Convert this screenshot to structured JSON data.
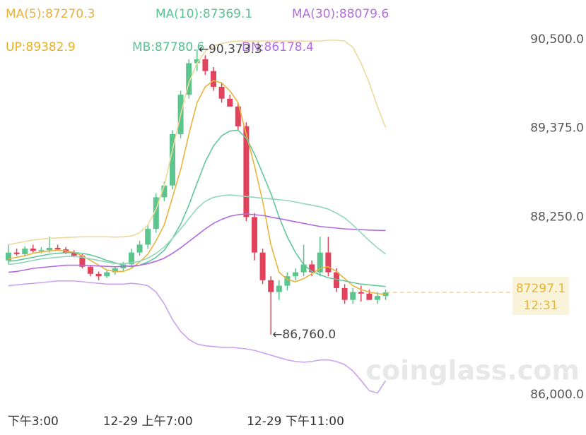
{
  "chart_data": {
    "type": "candlestick",
    "categories": [
      null,
      null,
      null,
      "下午3:00",
      null,
      null,
      null,
      null,
      null,
      null,
      null,
      null,
      null,
      null,
      null,
      null,
      null,
      "12-29 上午7:00",
      null,
      null,
      null,
      null,
      null,
      null,
      null,
      null,
      null,
      null,
      null,
      null,
      null,
      null,
      null,
      null,
      null,
      "12-29 下午11:00",
      null,
      null,
      null,
      null,
      null,
      null,
      null,
      null,
      null,
      null,
      null
    ],
    "open": [
      87700,
      87800,
      87780,
      87850,
      87820,
      87830,
      87860,
      87840,
      87800,
      87760,
      87620,
      87530,
      87500,
      87550,
      87600,
      87650,
      87800,
      87900,
      88100,
      88500,
      88650,
      89300,
      89800,
      90200,
      90250,
      90100,
      89900,
      89750,
      89650,
      89400,
      88250,
      87800,
      87450,
      87300,
      87380,
      87500,
      87550,
      87650,
      87550,
      87800,
      87550,
      87350,
      87200,
      87300,
      87280,
      87200,
      87250
    ],
    "high": [
      87900,
      87850,
      87880,
      87900,
      87870,
      88000,
      87900,
      87870,
      87830,
      87780,
      87640,
      87560,
      87580,
      87620,
      87680,
      87850,
      87950,
      88150,
      88550,
      88700,
      89350,
      89850,
      90250,
      90373.3,
      90300,
      90150,
      89950,
      89800,
      89700,
      89450,
      88300,
      87850,
      87500,
      87450,
      87550,
      87600,
      87900,
      87700,
      88000,
      88000,
      87600,
      87400,
      87350,
      87380,
      87330,
      87300,
      87330
    ],
    "low": [
      87650,
      87760,
      87750,
      87800,
      87790,
      87800,
      87820,
      87780,
      87740,
      87600,
      87500,
      87450,
      87480,
      87520,
      87560,
      87620,
      87760,
      87850,
      88050,
      88450,
      88600,
      89250,
      89750,
      90100,
      90050,
      89850,
      89700,
      89650,
      89350,
      88200,
      87700,
      87400,
      86760,
      87200,
      87320,
      87450,
      87500,
      87500,
      87500,
      87500,
      87300,
      87150,
      87150,
      87180,
      87200,
      87150,
      87200
    ],
    "close": [
      87800,
      87780,
      87850,
      87820,
      87830,
      87860,
      87840,
      87800,
      87760,
      87620,
      87530,
      87500,
      87550,
      87600,
      87650,
      87800,
      87900,
      88100,
      88500,
      88650,
      89300,
      89800,
      90200,
      90250,
      90100,
      89900,
      89750,
      89650,
      89400,
      88250,
      87800,
      87450,
      87300,
      87380,
      87500,
      87550,
      87650,
      87550,
      87800,
      87550,
      87350,
      87200,
      87300,
      87280,
      87200,
      87250,
      87297.1
    ],
    "up_color": "#5cc48d",
    "down_color": "#e0435b",
    "series": [
      {
        "name": "MA(5):87270.3",
        "color": "#e8b43c",
        "legend_color": "#e9b13a",
        "values": [
          87720,
          87740,
          87760,
          87790,
          87810,
          87820,
          87830,
          87820,
          87800,
          87760,
          87700,
          87640,
          87580,
          87560,
          87560,
          87600,
          87680,
          87780,
          87950,
          88150,
          88500,
          88850,
          89300,
          89700,
          89900,
          89980,
          89950,
          89850,
          89700,
          89300,
          88900,
          88450,
          87900,
          87550,
          87460,
          87430,
          87470,
          87530,
          87600,
          87620,
          87560,
          87470,
          87380,
          87330,
          87300,
          87280,
          87270.3
        ]
      },
      {
        "name": "MA(10):87369.1",
        "color": "#62c69a",
        "legend_color": "#5bc292",
        "values": [
          87690,
          87700,
          87720,
          87740,
          87760,
          87780,
          87790,
          87800,
          87800,
          87790,
          87770,
          87740,
          87700,
          87670,
          87640,
          87620,
          87640,
          87680,
          87740,
          87830,
          87980,
          88160,
          88400,
          88680,
          88950,
          89150,
          89280,
          89340,
          89350,
          89250,
          89050,
          88800,
          88550,
          88250,
          88000,
          87800,
          87650,
          87560,
          87520,
          87480,
          87460,
          87440,
          87420,
          87400,
          87390,
          87380,
          87369.1
        ]
      },
      {
        "name": "MA(30):88079.6",
        "color": "#b26ae0",
        "legend_color": "#b46ce3",
        "values": [
          87550,
          87560,
          87580,
          87600,
          87610,
          87620,
          87630,
          87640,
          87640,
          87640,
          87635,
          87630,
          87625,
          87620,
          87625,
          87630,
          87640,
          87660,
          87690,
          87730,
          87790,
          87860,
          87940,
          88020,
          88100,
          88170,
          88220,
          88260,
          88280,
          88290,
          88280,
          88270,
          88250,
          88230,
          88210,
          88190,
          88170,
          88150,
          88130,
          88120,
          88110,
          88100,
          88095,
          88090,
          88085,
          88082,
          88079.6
        ]
      },
      {
        "name": "UP:89382.9",
        "color": "#efd99a",
        "legend_color": "#e8b028",
        "values": [
          87900,
          87920,
          87940,
          87960,
          87970,
          87980,
          87985,
          87990,
          87995,
          88000,
          88000,
          88000,
          88000,
          87995,
          88000,
          88010,
          88050,
          88150,
          88350,
          88650,
          89100,
          89550,
          89950,
          90200,
          90350,
          90420,
          90450,
          90470,
          90480,
          90480,
          90480,
          90480,
          90480,
          90480,
          90480,
          90480,
          90480,
          90480,
          90480,
          90490,
          90490,
          90480,
          90400,
          90200,
          89950,
          89650,
          89382.9
        ]
      },
      {
        "name": "MB:87780.6",
        "color": "#92d7b8",
        "legend_color": "#5bc292",
        "values": [
          87650,
          87660,
          87680,
          87700,
          87720,
          87730,
          87740,
          87750,
          87750,
          87740,
          87720,
          87700,
          87680,
          87660,
          87660,
          87670,
          87690,
          87730,
          87790,
          87870,
          87980,
          88100,
          88230,
          88360,
          88450,
          88500,
          88520,
          88530,
          88520,
          88510,
          88500,
          88490,
          88480,
          88470,
          88460,
          88440,
          88420,
          88400,
          88380,
          88350,
          88300,
          88240,
          88150,
          88050,
          87950,
          87860,
          87780.6
        ]
      },
      {
        "name": "DN:86178.4",
        "color": "#c9a2ee",
        "legend_color": "#b46ce3",
        "values": [
          87380,
          87390,
          87400,
          87410,
          87420,
          87430,
          87440,
          87440,
          87440,
          87430,
          87420,
          87410,
          87400,
          87400,
          87400,
          87410,
          87400,
          87380,
          87300,
          87150,
          86950,
          86800,
          86700,
          86640,
          86620,
          86610,
          86600,
          86600,
          86590,
          86580,
          86560,
          86530,
          86500,
          86470,
          86440,
          86420,
          86410,
          86420,
          86440,
          86440,
          86420,
          86380,
          86300,
          86180,
          86050,
          86020,
          86178.4
        ]
      }
    ],
    "annotations": [
      {
        "label": "←90,373.3",
        "value": 90373.3
      },
      {
        "label": "←86,760.0",
        "value": 86760
      }
    ],
    "last_price": 87297.1,
    "countdown": "12:31",
    "watermark": "coinglass.com",
    "ylim": [
      85900,
      91000
    ],
    "yticks": [
      {
        "value": 86000,
        "label": "86,000.0"
      },
      {
        "value": 88250,
        "label": "88,250.0"
      },
      {
        "value": 89375,
        "label": "89,375.0"
      },
      {
        "value": 90500,
        "label": "90,500.0"
      }
    ]
  }
}
